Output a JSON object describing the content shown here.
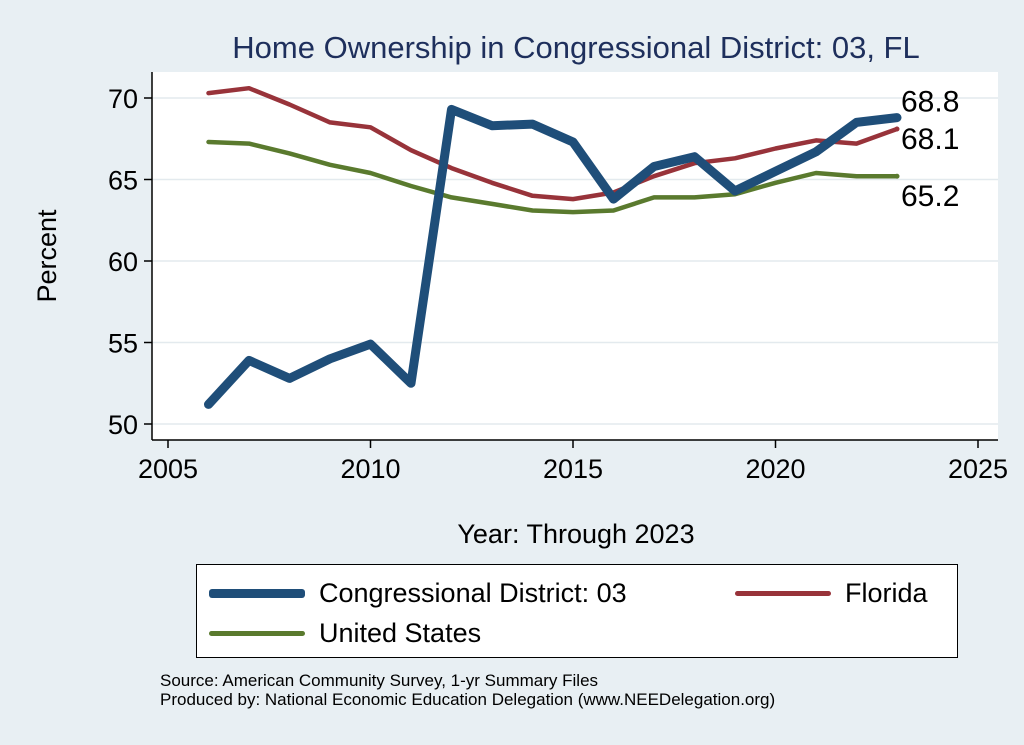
{
  "chart_data": {
    "type": "line",
    "title": "Home Ownership in Congressional District:  03, FL",
    "xlabel": "Year: Through 2023",
    "ylabel": "Percent",
    "xlim": [
      2005,
      2025
    ],
    "ylim": [
      50,
      71
    ],
    "x_ticks": [
      2005,
      2010,
      2015,
      2020,
      2025
    ],
    "y_ticks": [
      50,
      55,
      60,
      65,
      70
    ],
    "grid": "horizontal",
    "legend_position": "bottom",
    "x": [
      2006,
      2007,
      2008,
      2009,
      2010,
      2011,
      2012,
      2013,
      2014,
      2015,
      2016,
      2017,
      2018,
      2019,
      2020,
      2021,
      2022,
      2023
    ],
    "series": [
      {
        "name": "Congressional District:  03",
        "color": "#1f4e79",
        "values": [
          51.2,
          53.9,
          52.8,
          54.0,
          54.9,
          52.5,
          69.3,
          68.3,
          68.4,
          67.3,
          63.8,
          65.8,
          66.4,
          64.3,
          65.5,
          66.7,
          68.5,
          68.8
        ],
        "end_label": "68.8"
      },
      {
        "name": "Florida",
        "color": "#98333a",
        "values": [
          70.3,
          70.6,
          69.6,
          68.5,
          68.2,
          66.8,
          65.7,
          64.8,
          64.0,
          63.8,
          64.2,
          65.2,
          66.0,
          66.3,
          66.9,
          67.4,
          67.2,
          68.1
        ],
        "end_label": "68.1"
      },
      {
        "name": "United States",
        "color": "#5a7a2e",
        "values": [
          67.3,
          67.2,
          66.6,
          65.9,
          65.4,
          64.6,
          63.9,
          63.5,
          63.1,
          63.0,
          63.1,
          63.9,
          63.9,
          64.1,
          64.8,
          65.4,
          65.2,
          65.2
        ],
        "end_label": "65.2"
      }
    ]
  },
  "source_line": "Source: American Community Survey, 1-yr Summary Files",
  "produced_line": "Produced by: National Economic Education Delegation (www.NEEDelegation.org)"
}
